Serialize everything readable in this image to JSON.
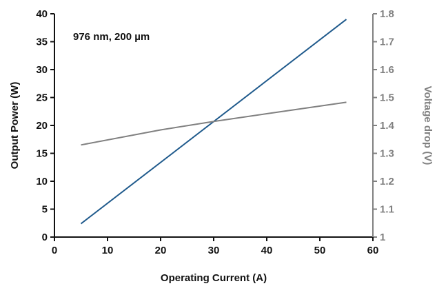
{
  "chart_data": {
    "type": "line",
    "annotation": "976 nm, 200 µm",
    "xlabel": "Operating Current (A)",
    "ylabel": "Output Power (W)",
    "y2label": "Voltage drop (V)",
    "xlim": [
      0,
      60
    ],
    "ylim": [
      0,
      40
    ],
    "y2lim": [
      1.0,
      1.8
    ],
    "xticks": [
      "0",
      "10",
      "20",
      "30",
      "40",
      "50",
      "60"
    ],
    "yticks": [
      "0",
      "5",
      "10",
      "15",
      "20",
      "25",
      "30",
      "35",
      "40"
    ],
    "y2ticks": [
      "1",
      "1.1",
      "1.2",
      "1.3",
      "1.4",
      "1.5",
      "1.6",
      "1.7",
      "1.8"
    ],
    "grid": false,
    "series": [
      {
        "axis": "left",
        "color": "#1f5a8c",
        "x": [
          5,
          55
        ],
        "y": [
          2.4,
          39.0
        ]
      },
      {
        "axis": "right",
        "color": "#808080",
        "x": [
          5,
          20,
          30,
          40,
          55
        ],
        "y": [
          1.33,
          1.384,
          1.414,
          1.442,
          1.483
        ]
      }
    ],
    "colors": {
      "left_axis": "#111111",
      "right_axis": "#808080"
    }
  }
}
